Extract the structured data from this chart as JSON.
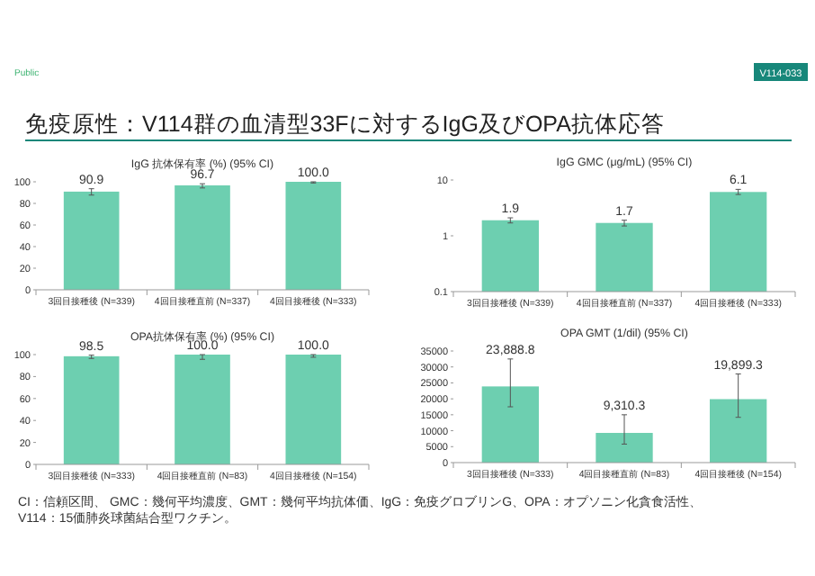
{
  "chart_data": [
    {
      "type": "bar",
      "title": "IgG 抗体保有率 (%) (95% CI)",
      "annotations": [
        "Public",
        "V114-033",
        "免疫原性：V114群の血清型33Fに対するIgG及びOPA抗体応答"
      ],
      "categories": [
        "3回目接種後 (N=339)",
        "4回目接種直前 (N=337)",
        "4回目接種後 (N=333)"
      ],
      "series": [
        {
          "color": "#6dcfb0",
          "values": [
            90.9,
            96.7,
            100.0
          ],
          "errors": [
            [
              87.7,
              93.6
            ],
            [
              94.3,
              98.2
            ],
            [
              98.9,
              100.0
            ]
          ],
          "value_labels": [
            "90.9",
            "96.7",
            "100.0"
          ]
        }
      ],
      "ylim": [
        0,
        100
      ],
      "yticks": [
        0,
        20,
        40,
        60,
        80,
        100
      ],
      "grid": false
    },
    {
      "type": "bar",
      "title": "IgG GMC (μg/mL) (95% CI)",
      "log": "y",
      "categories": [
        "3回目接種後 (N=339)",
        "4回目接種直前 (N=337)",
        "4回目接種後 (N=333)"
      ],
      "series": [
        {
          "color": "#6dcfb0",
          "values": [
            1.9,
            1.7,
            6.1
          ],
          "errors": [
            [
              1.7,
              2.1
            ],
            [
              1.5,
              1.9
            ],
            [
              5.5,
              6.8
            ]
          ],
          "value_labels": [
            "1.9",
            "1.7",
            "6.1"
          ]
        }
      ],
      "ylim": [
        0.1,
        10
      ],
      "yticks": [
        0.1,
        1,
        10
      ],
      "grid": false
    },
    {
      "type": "bar",
      "title": "OPA抗体保有率 (%) (95% CI)",
      "categories": [
        "3回目接種後 (N=333)",
        "4回目接種直前 (N=83)",
        "4回目接種後 (N=154)"
      ],
      "series": [
        {
          "color": "#6dcfb0",
          "values": [
            98.5,
            100.0,
            100.0
          ],
          "errors": [
            [
              96.5,
              99.5
            ],
            [
              95.7,
              100.0
            ],
            [
              97.6,
              100.0
            ]
          ],
          "value_labels": [
            "98.5",
            "100.0",
            "100.0"
          ]
        }
      ],
      "ylim": [
        0,
        100
      ],
      "yticks": [
        0,
        20,
        40,
        60,
        80,
        100
      ],
      "grid": false
    },
    {
      "type": "bar",
      "title": "OPA GMT (1/dil) (95% CI)",
      "annotations": [
        "CI：信頼区間、 GMC：幾何平均濃度、GMT：幾何平均抗体価、IgG：免疫グロブリンG、OPA：オプソニン化貪食活性、",
        "V114：15価肺炎球菌結合型ワクチン。"
      ],
      "categories": [
        "3回目接種後 (N=333)",
        "4回目接種直前 (N=83)",
        "4回目接種後 (N=154)"
      ],
      "series": [
        {
          "color": "#6dcfb0",
          "values": [
            23888.8,
            9310.3,
            19899.3
          ],
          "errors": [
            [
              17500,
              32500
            ],
            [
              5800,
              15000
            ],
            [
              14200,
              27800
            ]
          ],
          "value_labels": [
            "23,888.8",
            "9,310.3",
            "19,899.3"
          ]
        }
      ],
      "ylim": [
        0,
        35000
      ],
      "yticks": [
        0,
        5000,
        10000,
        15000,
        20000,
        25000,
        30000,
        35000
      ],
      "grid": false
    }
  ]
}
